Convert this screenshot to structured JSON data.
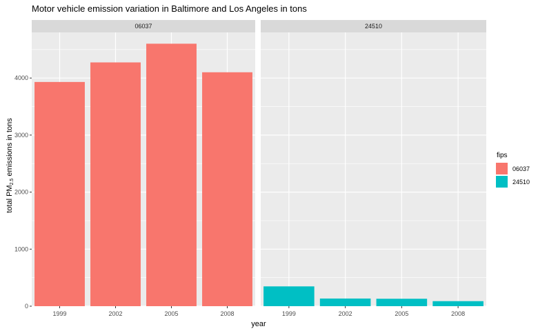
{
  "chart_data": {
    "type": "bar",
    "title": "Motor vehicle emission variation in Baltimore and Los Angeles in tons",
    "xlabel": "year",
    "ylabel_main": "total PM",
    "ylabel_sub": "2.5",
    "ylabel_rest": " emissions in tons",
    "categories": [
      "1999",
      "2002",
      "2005",
      "2008"
    ],
    "ylim": [
      0,
      4800
    ],
    "yticks": [
      0,
      1000,
      2000,
      3000,
      4000
    ],
    "grid": true,
    "legend": {
      "title": "fips",
      "placement": "right",
      "entries": [
        {
          "label": "06037",
          "color": "#F8766D"
        },
        {
          "label": "24510",
          "color": "#00BFC4"
        }
      ]
    },
    "panels": [
      {
        "strip": "06037",
        "color": "#F8766D",
        "values": [
          3931,
          4274,
          4602,
          4101
        ]
      },
      {
        "strip": "24510",
        "color": "#00BFC4",
        "values": [
          347,
          134,
          130,
          88
        ]
      }
    ]
  }
}
